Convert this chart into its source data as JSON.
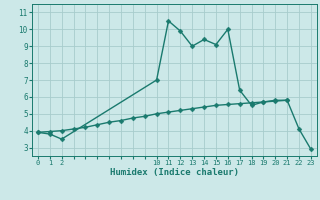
{
  "line1_x": [
    0,
    1,
    2,
    10,
    11,
    12,
    13,
    14,
    15,
    16,
    17,
    18,
    19,
    20,
    21,
    22,
    23
  ],
  "line1_y": [
    3.9,
    3.8,
    3.5,
    7.0,
    10.5,
    9.9,
    9.0,
    9.4,
    9.1,
    10.0,
    6.4,
    5.5,
    5.7,
    5.8,
    5.8,
    4.1,
    2.9
  ],
  "line2_x": [
    0,
    1,
    2,
    3,
    4,
    5,
    6,
    7,
    8,
    9,
    10,
    11,
    12,
    13,
    14,
    15,
    16,
    17,
    18,
    19,
    20,
    21
  ],
  "line2_y": [
    3.9,
    3.95,
    4.0,
    4.1,
    4.2,
    4.35,
    4.5,
    4.6,
    4.75,
    4.85,
    5.0,
    5.1,
    5.2,
    5.3,
    5.4,
    5.5,
    5.55,
    5.6,
    5.65,
    5.7,
    5.75,
    5.8
  ],
  "line_color": "#1a7a6e",
  "bg_color": "#cce8e8",
  "grid_color": "#a8cccc",
  "xlabel": "Humidex (Indice chaleur)",
  "all_xticks": [
    0,
    1,
    2,
    3,
    4,
    5,
    6,
    7,
    8,
    9,
    10,
    11,
    12,
    13,
    14,
    15,
    16,
    17,
    18,
    19,
    20,
    21,
    22,
    23
  ],
  "labeled_xticks": [
    0,
    1,
    2,
    10,
    11,
    12,
    13,
    14,
    15,
    16,
    17,
    18,
    19,
    20,
    21,
    22,
    23
  ],
  "yticks": [
    3,
    4,
    5,
    6,
    7,
    8,
    9,
    10,
    11
  ],
  "xlim": [
    -0.5,
    23.5
  ],
  "ylim": [
    2.5,
    11.5
  ],
  "markersize": 2.5,
  "linewidth": 1.0
}
